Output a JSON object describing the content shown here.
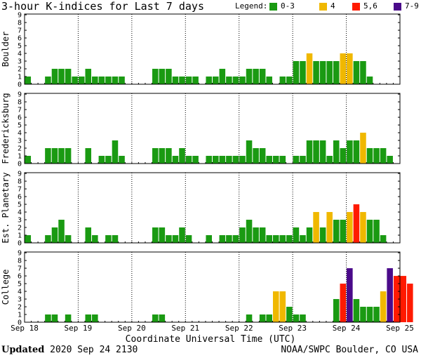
{
  "header": {
    "title": "3-hour K-indices for Last 7 days"
  },
  "legend": {
    "label": "Legend:",
    "items": [
      {
        "label": "0-3",
        "color": "#1a9a12"
      },
      {
        "label": "4",
        "color": "#f0b800"
      },
      {
        "label": "5,6",
        "color": "#ff1a00"
      },
      {
        "label": "7-9",
        "color": "#4a0a8a"
      }
    ]
  },
  "footer": {
    "updated_label": "Updated",
    "updated_value": "2020 Sep 24 2130",
    "credit": "NOAA/SWPC Boulder, CO USA",
    "xaxis_title": "Coordinate Universal Time (UTC)"
  },
  "chart_data": {
    "type": "bar",
    "x_ticks": [
      "Sep 18",
      "Sep 19",
      "Sep 20",
      "Sep 21",
      "Sep 22",
      "Sep 23",
      "Sep 24",
      "Sep 25"
    ],
    "xlabel": "Coordinate Universal Time (UTC)",
    "ylim": [
      0,
      9
    ],
    "y_ticks": [
      0,
      1,
      2,
      3,
      4,
      5,
      6,
      7,
      8,
      9
    ],
    "bins_per_day": 8,
    "color_scale": [
      {
        "range": "0-3",
        "color": "#1a9a12"
      },
      {
        "range": "4",
        "color": "#f0b800"
      },
      {
        "range": "5,6",
        "color": "#ff1a00"
      },
      {
        "range": "7-9",
        "color": "#4a0a8a"
      }
    ],
    "panels": [
      {
        "name": "Boulder",
        "values": [
          1,
          0,
          0,
          1,
          2,
          2,
          2,
          1,
          1,
          2,
          1,
          1,
          1,
          1,
          1,
          0,
          0,
          0,
          0,
          2,
          2,
          2,
          1,
          1,
          1,
          1,
          0,
          1,
          1,
          2,
          1,
          1,
          1,
          2,
          2,
          2,
          1,
          0,
          1,
          1,
          3,
          3,
          4,
          3,
          3,
          3,
          3,
          4,
          4,
          3,
          3,
          1,
          0
        ]
      },
      {
        "name": "Fredericksburg",
        "values": [
          1,
          0,
          0,
          2,
          2,
          2,
          2,
          0,
          0,
          2,
          0,
          1,
          1,
          3,
          1,
          0,
          0,
          0,
          0,
          2,
          2,
          2,
          1,
          2,
          1,
          1,
          0,
          1,
          1,
          1,
          1,
          1,
          1,
          3,
          2,
          2,
          1,
          1,
          1,
          0,
          1,
          1,
          3,
          3,
          3,
          1,
          3,
          2,
          3,
          3,
          4,
          2,
          2,
          2,
          1,
          0
        ]
      },
      {
        "name": "Est. Planetary",
        "values": [
          1,
          0,
          0,
          1,
          2,
          3,
          1,
          0,
          0,
          2,
          1,
          0,
          1,
          1,
          0,
          0,
          0,
          0,
          0,
          2,
          2,
          1,
          1,
          2,
          1,
          0,
          0,
          1,
          0,
          1,
          1,
          1,
          2,
          3,
          2,
          2,
          1,
          1,
          1,
          1,
          2,
          1,
          2,
          4,
          2,
          4,
          3,
          3,
          4,
          5,
          4,
          3,
          3,
          1,
          0
        ]
      },
      {
        "name": "College",
        "values": [
          0,
          0,
          0,
          1,
          1,
          0,
          1,
          0,
          0,
          1,
          1,
          0,
          0,
          0,
          0,
          0,
          0,
          0,
          0,
          1,
          1,
          0,
          0,
          0,
          0,
          0,
          0,
          0,
          0,
          0,
          0,
          0,
          0,
          1,
          0,
          1,
          1,
          4,
          4,
          2,
          1,
          1,
          0,
          0,
          0,
          0,
          3,
          5,
          7,
          3,
          2,
          2,
          2,
          4,
          7,
          6,
          6,
          5
        ]
      }
    ]
  }
}
